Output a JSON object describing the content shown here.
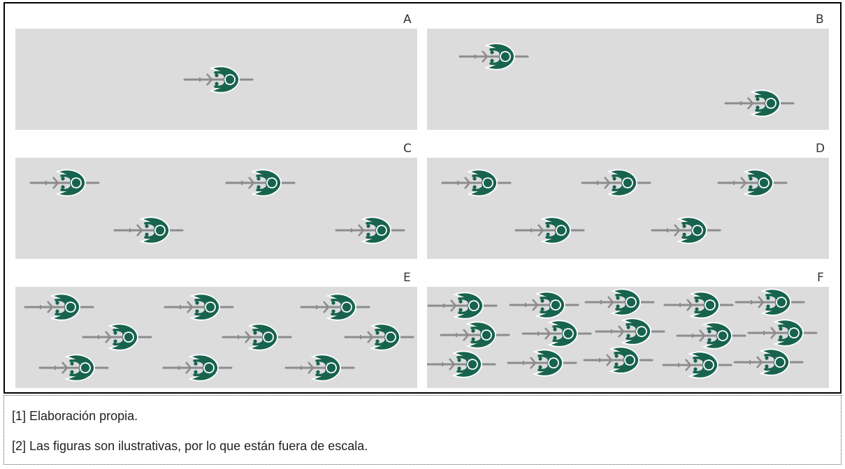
{
  "panels": [
    {
      "letter": "A",
      "cyclists": 1
    },
    {
      "letter": "B",
      "cyclists": 2
    },
    {
      "letter": "C",
      "cyclists": 4
    },
    {
      "letter": "D",
      "cyclists": 5
    },
    {
      "letter": "E",
      "cyclists": 9
    },
    {
      "letter": "F",
      "cyclists": 15
    }
  ],
  "notes": [
    "[1] Elaboración propia.",
    "[2] Las figuras son ilustrativas, por lo que están fuera de escala."
  ],
  "colors": {
    "panel_bg": "#dcdcdc",
    "rider": "#17634e",
    "bicycle": "#8c8c8c"
  },
  "icons": {
    "cyclist": "cyclist-top-view-icon"
  }
}
